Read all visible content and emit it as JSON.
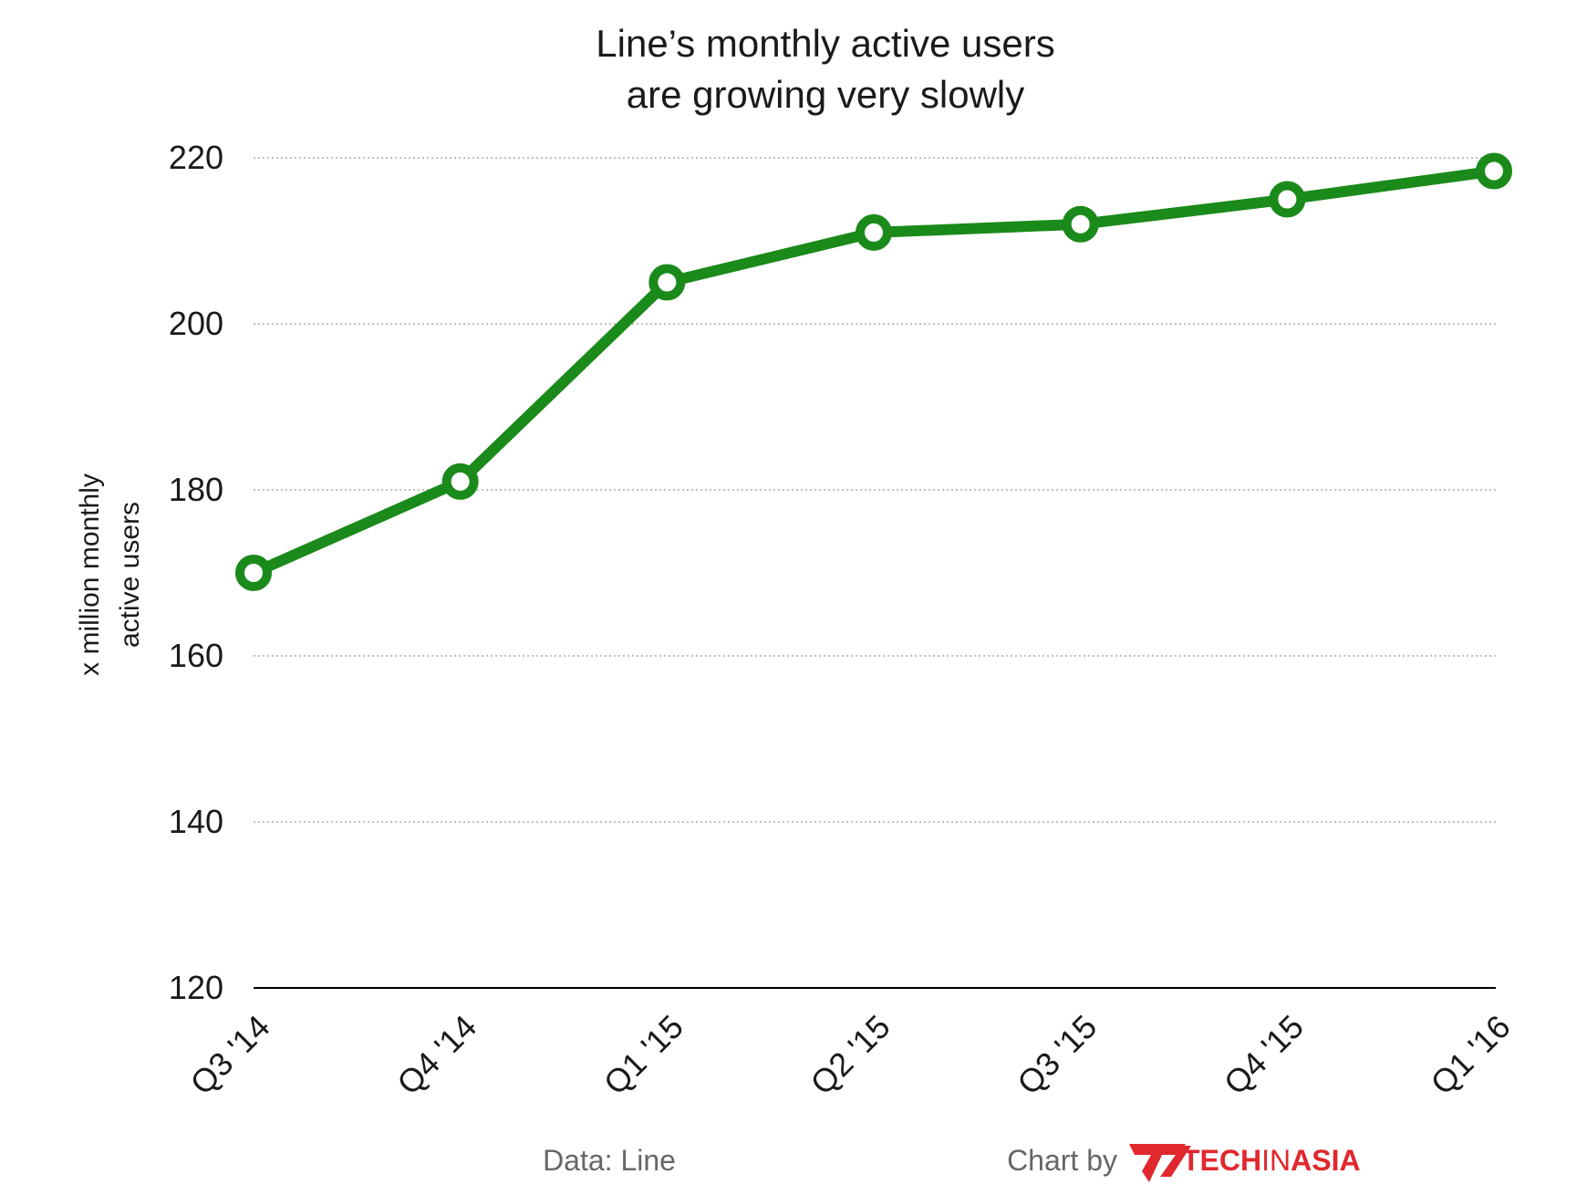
{
  "chart_data": {
    "type": "line",
    "title": [
      "Line’s monthly active users",
      "are growing very slowly"
    ],
    "ylabel": [
      "x million monthly",
      "active users"
    ],
    "xlabel": "",
    "categories": [
      "Q3 '14",
      "Q4 '14",
      "Q1 '15",
      "Q2 '15",
      "Q3 '15",
      "Q4 '15",
      "Q1 '16"
    ],
    "series": [
      {
        "values": [
          170,
          181,
          205,
          211,
          212,
          215,
          218.4
        ],
        "color": "#1a8a1a"
      }
    ],
    "ylim": [
      120,
      220
    ],
    "yticks": [
      120,
      140,
      160,
      180,
      200,
      220
    ],
    "grid": true,
    "legend": "none"
  },
  "footer": {
    "source": "Data: Line",
    "credit": "Chart by",
    "logo_part1": "TECH",
    "logo_part2": "IN",
    "logo_part3": "ASIA",
    "logo_color": "#e0282e"
  }
}
